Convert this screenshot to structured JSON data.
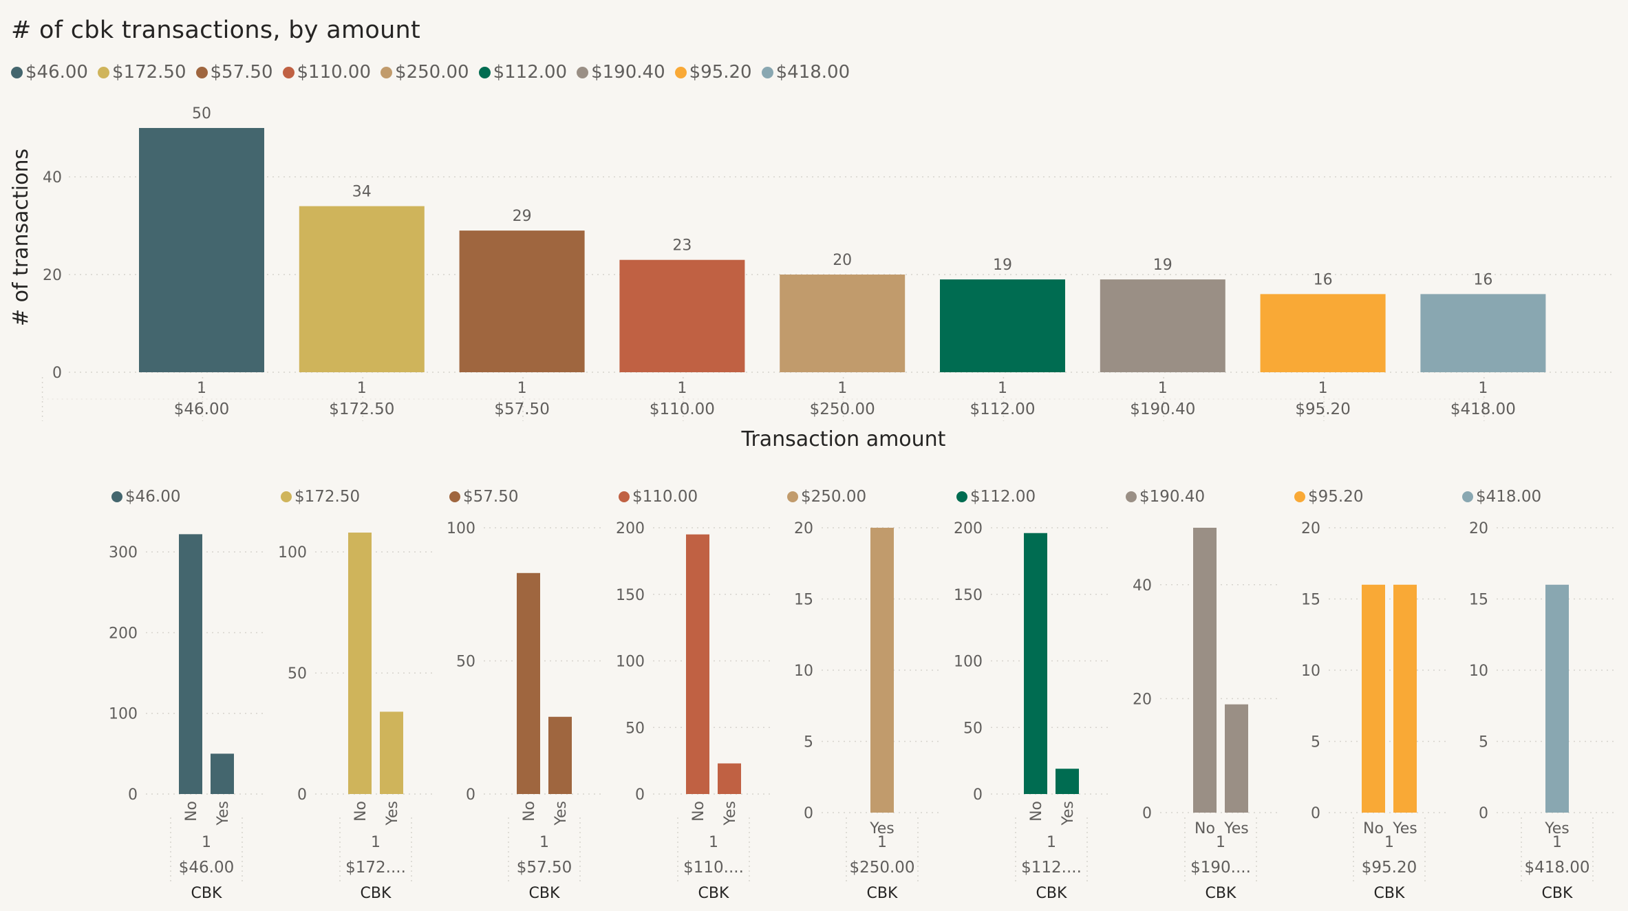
{
  "chart_data": [
    {
      "type": "bar",
      "title": "# of cbk transactions, by amount",
      "xlabel": "Transaction amount",
      "ylabel": "# of transactions",
      "ylim": [
        0,
        50
      ],
      "yticks": [
        0,
        20,
        40
      ],
      "grid": true,
      "legend_position": "top-left",
      "legend": [
        "$46.00",
        "$172.50",
        "$57.50",
        "$110.00",
        "$250.00",
        "$112.00",
        "$190.40",
        "$95.20",
        "$418.00"
      ],
      "categories": [
        {
          "group": "1",
          "amount": "$46.00"
        },
        {
          "group": "1",
          "amount": "$172.50"
        },
        {
          "group": "1",
          "amount": "$57.50"
        },
        {
          "group": "1",
          "amount": "$110.00"
        },
        {
          "group": "1",
          "amount": "$250.00"
        },
        {
          "group": "1",
          "amount": "$112.00"
        },
        {
          "group": "1",
          "amount": "$190.40"
        },
        {
          "group": "1",
          "amount": "$95.20"
        },
        {
          "group": "1",
          "amount": "$418.00"
        }
      ],
      "values": [
        50,
        34,
        29,
        23,
        20,
        19,
        19,
        16,
        16
      ],
      "colors": [
        "#44666e",
        "#cfb45b",
        "#9f663f",
        "#c06143",
        "#c19b6c",
        "#006c51",
        "#9a8f85",
        "#f9a936",
        "#89a7b1"
      ]
    },
    {
      "type": "bar",
      "small_multiples": true,
      "xlabel": "CBK",
      "grid": true,
      "panels": [
        {
          "legend": "$46.00",
          "color": "#44666e",
          "group": "1",
          "amount": "$46.00",
          "categories": [
            "No",
            "Yes"
          ],
          "values": [
            322,
            50
          ],
          "ylim": [
            0,
            330
          ],
          "yticks": [
            0,
            100,
            200,
            300
          ],
          "rotated_labels": true
        },
        {
          "legend": "$172.50",
          "color": "#cfb45b",
          "group": "1",
          "amount": "$172....",
          "categories": [
            "No",
            "Yes"
          ],
          "values": [
            108,
            34
          ],
          "ylim": [
            0,
            110
          ],
          "yticks": [
            0,
            50,
            100
          ],
          "rotated_labels": true
        },
        {
          "legend": "$57.50",
          "color": "#9f663f",
          "group": "1",
          "amount": "$57.50",
          "categories": [
            "No",
            "Yes"
          ],
          "values": [
            83,
            29
          ],
          "ylim": [
            0,
            100
          ],
          "yticks": [
            0,
            50,
            100
          ],
          "rotated_labels": true
        },
        {
          "legend": "$110.00",
          "color": "#c06143",
          "group": "1",
          "amount": "$110....",
          "categories": [
            "No",
            "Yes"
          ],
          "values": [
            195,
            23
          ],
          "ylim": [
            0,
            200
          ],
          "yticks": [
            0,
            50,
            100,
            150,
            200
          ],
          "rotated_labels": true
        },
        {
          "legend": "$250.00",
          "color": "#c19b6c",
          "group": "1",
          "amount": "$250.00",
          "categories": [
            "Yes"
          ],
          "values": [
            20
          ],
          "ylim": [
            0,
            20
          ],
          "yticks": [
            0,
            5,
            10,
            15,
            20
          ],
          "rotated_labels": false
        },
        {
          "legend": "$112.00",
          "color": "#006c51",
          "group": "1",
          "amount": "$112....",
          "categories": [
            "No",
            "Yes"
          ],
          "values": [
            196,
            19
          ],
          "ylim": [
            0,
            200
          ],
          "yticks": [
            0,
            50,
            100,
            150,
            200
          ],
          "rotated_labels": true
        },
        {
          "legend": "$190.40",
          "color": "#9a8f85",
          "group": "1",
          "amount": "$190....",
          "categories": [
            "No",
            "Yes"
          ],
          "values": [
            50,
            19
          ],
          "ylim": [
            0,
            50
          ],
          "yticks": [
            0,
            20,
            40
          ],
          "rotated_labels": false
        },
        {
          "legend": "$95.20",
          "color": "#f9a936",
          "group": "1",
          "amount": "$95.20",
          "categories": [
            "No",
            "Yes"
          ],
          "values": [
            16,
            16
          ],
          "ylim": [
            0,
            20
          ],
          "yticks": [
            0,
            5,
            10,
            15,
            20
          ],
          "rotated_labels": false
        },
        {
          "legend": "$418.00",
          "color": "#89a7b1",
          "group": "1",
          "amount": "$418.00",
          "categories": [
            "Yes"
          ],
          "values": [
            16
          ],
          "ylim": [
            0,
            20
          ],
          "yticks": [
            0,
            5,
            10,
            15,
            20
          ],
          "rotated_labels": false
        }
      ]
    }
  ]
}
